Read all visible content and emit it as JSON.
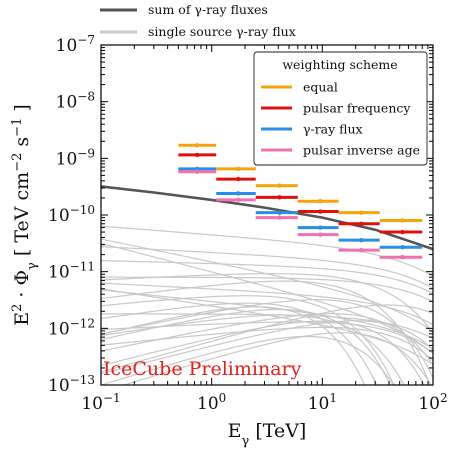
{
  "chart_data": {
    "type": "line",
    "xlabel": "E_γ [TeV]",
    "ylabel": "E^2 · Φ_γ [ TeV cm^-2 s^-1 ]",
    "xscale": "log",
    "yscale": "log",
    "xlim": [
      0.1,
      100
    ],
    "ylim": [
      1e-13,
      1e-07
    ],
    "x_tick_labels": [
      "10^-1",
      "10^0",
      "10^1",
      "10^2"
    ],
    "y_tick_labels": [
      "10^-13",
      "10^-12",
      "10^-11",
      "10^-10",
      "10^-9",
      "10^-8",
      "10^-7"
    ],
    "annotation": "IceCube Preliminary",
    "annotation_color": "#e0201b",
    "top_legend": [
      {
        "label": "sum of γ-ray fluxes",
        "color": "#555555"
      },
      {
        "label": "single source γ-ray flux",
        "color": "#c8c8c8"
      }
    ],
    "legend_title": "weighting scheme",
    "legend_placement": "top-right",
    "series": [
      {
        "name": "equal",
        "color": "#f5a40c",
        "x": [
          0.74,
          1.74,
          4.1,
          9.6,
          22.5,
          53
        ],
        "y": [
          1.7e-09,
          6.5e-10,
          3.3e-10,
          1.75e-10,
          1.1e-10,
          8e-11
        ]
      },
      {
        "name": "pulsar frequency",
        "color": "#e01010",
        "x": [
          0.74,
          1.74,
          4.1,
          9.6,
          22.5,
          53
        ],
        "y": [
          1.15e-09,
          4.3e-10,
          2.05e-10,
          1.15e-10,
          7e-11,
          5e-11
        ]
      },
      {
        "name": "γ-ray flux",
        "color": "#2a8de8",
        "x": [
          0.74,
          1.74,
          4.1,
          9.6,
          22.5,
          53
        ],
        "y": [
          6.5e-10,
          2.4e-10,
          1.1e-10,
          6e-11,
          3.6e-11,
          2.7e-11
        ]
      },
      {
        "name": "pulsar inverse age",
        "color": "#f070b0",
        "x": [
          0.74,
          1.74,
          4.1,
          9.6,
          22.5,
          53
        ],
        "y": [
          5.8e-10,
          1.85e-10,
          9e-11,
          4.5e-11,
          2.4e-11,
          1.8e-11
        ]
      }
    ],
    "x_error_bins": [
      [
        0.5,
        1.1
      ],
      [
        1.1,
        2.5
      ],
      [
        2.5,
        6
      ],
      [
        6,
        14
      ],
      [
        14,
        33
      ],
      [
        33,
        80
      ]
    ],
    "sum_curve": {
      "x": [
        0.1,
        0.3,
        1,
        3,
        10,
        30,
        60,
        100
      ],
      "y": [
        3.2e-10,
        2.5e-10,
        1.85e-10,
        1.35e-10,
        9e-11,
        5.5e-11,
        3.5e-11,
        2.5e-11
      ]
    },
    "single_source_curves": [
      {
        "n": 4.5e-11,
        "g": 2.15,
        "c": 100
      },
      {
        "n": 2.2e-11,
        "g": 2.1,
        "c": 100
      },
      {
        "n": 1.4e-11,
        "g": 2.05,
        "c": 100
      },
      {
        "n": 8e-12,
        "g": 2.0,
        "c": 100
      },
      {
        "n": 5e-12,
        "g": 2.1,
        "c": 100
      },
      {
        "n": 3e-12,
        "g": 2.2,
        "c": 100
      },
      {
        "n": 1.8e-12,
        "g": 2.0,
        "c": 100
      },
      {
        "n": 6e-12,
        "g": 1.75,
        "c": 18
      },
      {
        "n": 4e-12,
        "g": 1.8,
        "c": 10
      },
      {
        "n": 3e-12,
        "g": 1.7,
        "c": 7
      },
      {
        "n": 2e-12,
        "g": 1.6,
        "c": 22
      },
      {
        "n": 1.5e-12,
        "g": 1.7,
        "c": 14
      },
      {
        "n": 1e-12,
        "g": 1.6,
        "c": 30
      },
      {
        "n": 7e-13,
        "g": 1.5,
        "c": 20
      },
      {
        "n": 5e-13,
        "g": 1.5,
        "c": 40
      },
      {
        "n": 4e-13,
        "g": 1.4,
        "c": 12
      },
      {
        "n": 3e-13,
        "g": 1.4,
        "c": 25
      },
      {
        "n": 1.5e-11,
        "g": 2.4,
        "c": 100
      },
      {
        "n": 1e-11,
        "g": 2.5,
        "c": 100
      },
      {
        "n": 2.5e-12,
        "g": 2.3,
        "c": 100
      },
      {
        "n": 1.2e-12,
        "g": 1.9,
        "c": 60
      },
      {
        "n": 8e-13,
        "g": 1.8,
        "c": 50
      },
      {
        "n": 2.5e-12,
        "g": 1.5,
        "c": 5
      },
      {
        "n": 1.8e-12,
        "g": 1.55,
        "c": 9
      },
      {
        "n": 9e-12,
        "g": 1.9,
        "c": 35
      },
      {
        "n": 6e-13,
        "g": 1.45,
        "c": 70
      }
    ]
  }
}
